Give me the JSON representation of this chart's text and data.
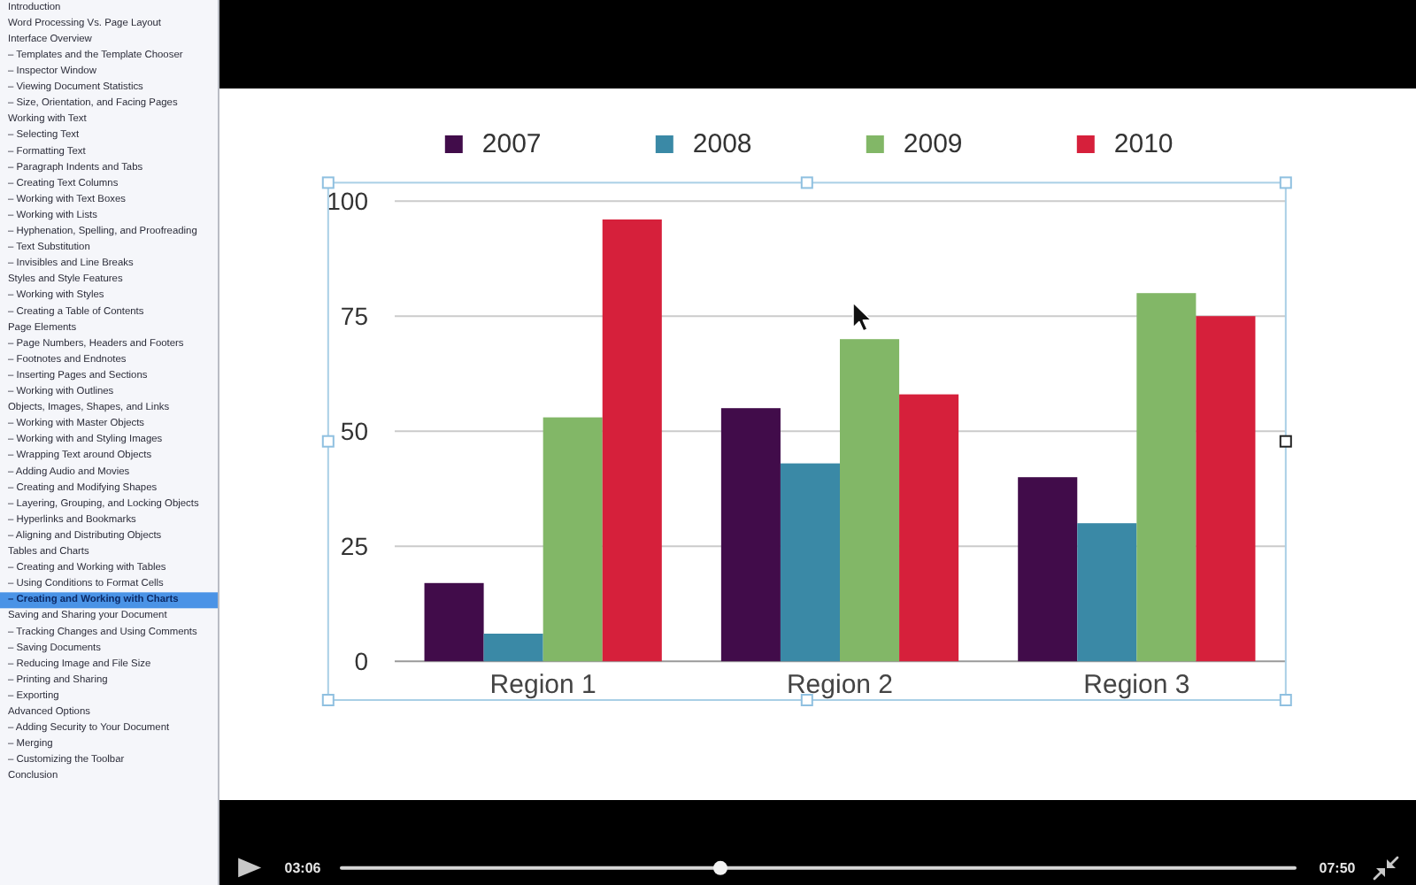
{
  "chart_data": {
    "type": "bar",
    "categories": [
      "Region 1",
      "Region 2",
      "Region 3"
    ],
    "series": [
      {
        "name": "2007",
        "color": "#410c4a",
        "values": [
          17,
          55,
          40
        ]
      },
      {
        "name": "2008",
        "color": "#3a89a6",
        "values": [
          6,
          43,
          30
        ]
      },
      {
        "name": "2009",
        "color": "#82b767",
        "values": [
          53,
          70,
          80
        ]
      },
      {
        "name": "2010",
        "color": "#d6203b",
        "values": [
          96,
          58,
          75
        ]
      }
    ],
    "ylim": [
      0,
      100
    ],
    "yticks": [
      0,
      25,
      50,
      75,
      100
    ],
    "grid": "y",
    "legend": "top",
    "annotations": [
      "Introduction",
      "Word Processing Vs. Page Layout",
      "Interface Overview",
      "– Templates and the Template Chooser",
      "– Inspector Window",
      "– Viewing Document Statistics",
      "– Size, Orientation, and Facing Pages",
      "Working with Text",
      "– Selecting Text",
      "– Formatting Text",
      "– Paragraph Indents and Tabs",
      "– Creating Text Columns",
      "– Working with Text Boxes",
      "– Working with Lists",
      "– Hyphenation, Spelling, and Proofreading",
      "– Text Substitution",
      "– Invisibles and Line Breaks",
      "Styles and Style Features",
      "– Working with Styles",
      "– Creating a Table of Contents",
      "Page Elements",
      "– Page Numbers, Headers and Footers",
      "– Footnotes and Endnotes",
      "– Inserting Pages and Sections",
      "– Working with Outlines",
      "Objects, Images, Shapes, and Links",
      "– Working with Master Objects",
      "– Working with and Styling Images",
      "– Wrapping Text around Objects",
      "– Adding Audio and Movies",
      "– Creating and Modifying Shapes",
      "– Layering, Grouping, and Locking Objects",
      "– Hyperlinks and Bookmarks",
      "– Aligning and Distributing Objects",
      "Tables and Charts",
      "– Creating and Working with Tables",
      "– Using Conditions to Format Cells",
      "– Creating and Working with Charts",
      "Saving and Sharing your Document",
      "– Tracking Changes and Using Comments",
      "– Saving Documents",
      "– Reducing Image and File Size",
      "– Printing and Sharing",
      "– Exporting",
      "Advanced Options",
      "– Adding Security to Your Document",
      "– Merging",
      "– Customizing the Toolbar",
      "Conclusion",
      "03:06",
      "07:50"
    ]
  }
}
